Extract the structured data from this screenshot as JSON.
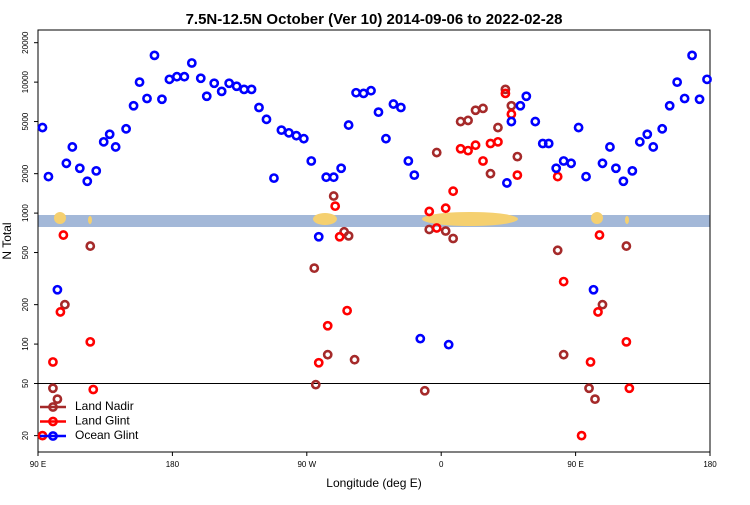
{
  "chart_data": {
    "type": "scatter",
    "title": "7.5N-12.5N October (Ver 10)   2014-09-06 to 2022-02-28",
    "x_label": "Longitude (deg E)",
    "y_label": "N Total",
    "xlim": [
      90,
      540
    ],
    "xticks": [
      {
        "value": 90,
        "label": "90 E"
      },
      180,
      {
        "value": 270,
        "label": "90 W"
      },
      {
        "value": 360,
        "label": "0"
      },
      {
        "value": 450,
        "label": "90 E"
      },
      {
        "value": 540,
        "label": "180"
      }
    ],
    "ylim": [
      15,
      25000
    ],
    "log_y": true,
    "yticks": [
      20,
      50,
      100,
      200,
      500,
      1000,
      2000,
      5000,
      10000,
      20000
    ],
    "hline": 50,
    "legend": "bottomleft",
    "series": [
      {
        "name": "Land Nadir",
        "color": "#a52a2a",
        "x": [
          100,
          103,
          108,
          125,
          275,
          276,
          284,
          288,
          295,
          298,
          302,
          349,
          352,
          357,
          363,
          368,
          373,
          378,
          383,
          388,
          393,
          398,
          403,
          407,
          411,
          438,
          442,
          459,
          463,
          468,
          484
        ],
        "values": [
          46,
          38,
          200,
          560,
          380,
          49,
          83,
          1350,
          720,
          670,
          76,
          44,
          750,
          2900,
          730,
          640,
          5000,
          5100,
          6100,
          6300,
          2000,
          4500,
          8800,
          6600,
          2700,
          520,
          83,
          46,
          38,
          200,
          560
        ]
      },
      {
        "name": "Land Glint",
        "color": "#ff0000",
        "x": [
          93,
          100,
          105,
          107,
          125,
          127,
          278,
          284,
          289,
          292,
          297,
          352,
          357,
          363,
          368,
          373,
          378,
          383,
          388,
          393,
          398,
          403,
          407,
          411,
          438,
          442,
          454,
          460,
          465,
          466,
          484,
          486
        ],
        "values": [
          20,
          73,
          176,
          680,
          104,
          45,
          72,
          138,
          1130,
          660,
          180,
          1030,
          770,
          1090,
          1470,
          3100,
          3000,
          3300,
          2500,
          3400,
          3500,
          8200,
          5700,
          1950,
          1900,
          300,
          20,
          73,
          176,
          680,
          104,
          46
        ]
      },
      {
        "name": "Ocean Glint",
        "color": "#0000ff",
        "x": [
          93,
          97,
          103,
          109,
          113,
          118,
          123,
          129,
          134,
          138,
          142,
          149,
          154,
          158,
          163,
          168,
          173,
          178,
          183,
          188,
          193,
          199,
          203,
          208,
          213,
          218,
          223,
          228,
          233,
          238,
          243,
          248,
          253,
          258,
          263,
          268,
          273,
          278,
          283,
          288,
          293,
          298,
          303,
          308,
          313,
          318,
          323,
          328,
          333,
          338,
          342,
          346,
          365,
          404,
          407,
          413,
          417,
          423,
          428,
          432,
          437,
          442,
          447,
          452,
          457,
          462,
          468,
          473,
          477,
          482,
          488,
          493,
          498,
          502,
          508,
          513,
          518,
          523,
          528,
          533,
          538
        ],
        "values": [
          4500,
          1900,
          260,
          2400,
          3200,
          2200,
          1750,
          2100,
          3500,
          4000,
          3200,
          4400,
          6600,
          10000,
          7500,
          16000,
          7400,
          10500,
          11000,
          11000,
          14000,
          10700,
          7800,
          9800,
          8500,
          9800,
          9300,
          8800,
          8800,
          6400,
          5200,
          1850,
          4300,
          4100,
          3900,
          3700,
          2500,
          660,
          1880,
          1880,
          2200,
          4700,
          8300,
          8200,
          8600,
          5900,
          3700,
          6800,
          6400,
          2500,
          1950,
          110,
          99,
          1700,
          5000,
          6600,
          7800,
          5000,
          3400,
          3400,
          2200,
          2500,
          2400,
          4500,
          1900,
          260,
          2400,
          3200,
          2200,
          1750,
          2100,
          3500,
          4000,
          3200,
          4400,
          6600,
          10000,
          7500,
          16000,
          7400,
          10500
        ]
      }
    ]
  }
}
